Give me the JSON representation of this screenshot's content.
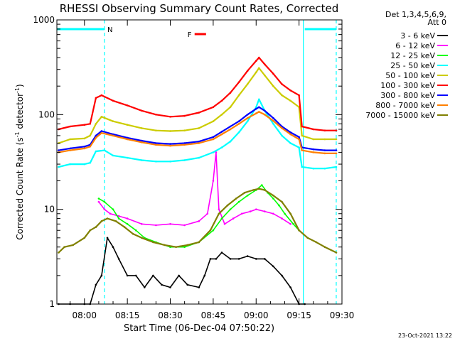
{
  "chart_data": {
    "type": "line",
    "title": "RHESSI Observing Summary Count Rates, Corrected",
    "ylabel_parts": [
      "Corrected Count Rate (s",
      "-1",
      " detector",
      "-1",
      ")"
    ],
    "xlabel": "Start Time (06-Dec-04 07:50:22)",
    "footer_date": "23-Oct-2021 13:22",
    "yscale": "log",
    "ylim": [
      1,
      1000
    ],
    "xlim": [
      "07:50:22",
      "09:30:00"
    ],
    "yticks": [
      {
        "value": 1,
        "label": "1"
      },
      {
        "value": 10,
        "label": "10"
      },
      {
        "value": 100,
        "label": "100"
      },
      {
        "value": 1000,
        "label": "1000"
      }
    ],
    "xticks": [
      {
        "value": "08:00",
        "label": "08:00"
      },
      {
        "value": "08:15",
        "label": "08:15"
      },
      {
        "value": "08:30",
        "label": "08:30"
      },
      {
        "value": "08:45",
        "label": "08:45"
      },
      {
        "value": "09:00",
        "label": "09:00"
      },
      {
        "value": "09:15",
        "label": "09:15"
      },
      {
        "value": "09:30",
        "label": "09:30"
      }
    ],
    "legend_header": [
      "Det 1,3,4,5,6,9,",
      "Att 0"
    ],
    "legend_position": "right",
    "annotations": [
      {
        "label": "N",
        "color": "#00ffff",
        "start": "07:50:22",
        "end": "08:07:00"
      },
      {
        "label": "",
        "color": "#00ffff",
        "start": "09:17:00",
        "end": "09:28:00"
      },
      {
        "label": "F",
        "color": "#ff0000",
        "start": "08:38:30",
        "end": "08:42:30"
      }
    ],
    "vlines": [
      {
        "time": "08:07:00",
        "color": "#00ffff",
        "style": "dashed"
      },
      {
        "time": "09:16:30",
        "color": "#00ffff",
        "style": "solid"
      },
      {
        "time": "09:28:00",
        "color": "#00ffff",
        "style": "dashed"
      }
    ],
    "series": [
      {
        "name": "3 - 6 keV",
        "color": "#000000",
        "points": [
          [
            "07:51",
            1
          ],
          [
            "07:55",
            1
          ],
          [
            "08:00",
            1
          ],
          [
            "08:02",
            1
          ],
          [
            "08:04",
            1.6
          ],
          [
            "08:06",
            2
          ],
          [
            "08:08",
            5
          ],
          [
            "08:10",
            4
          ],
          [
            "08:12",
            3
          ],
          [
            "08:15",
            2
          ],
          [
            "08:18",
            2
          ],
          [
            "08:21",
            1.5
          ],
          [
            "08:24",
            2
          ],
          [
            "08:27",
            1.6
          ],
          [
            "08:30",
            1.5
          ],
          [
            "08:33",
            2
          ],
          [
            "08:36",
            1.6
          ],
          [
            "08:40",
            1.5
          ],
          [
            "08:42",
            2
          ],
          [
            "08:44",
            3
          ],
          [
            "08:46",
            3
          ],
          [
            "08:48",
            3.5
          ],
          [
            "08:51",
            3
          ],
          [
            "08:54",
            3
          ],
          [
            "08:57",
            3.2
          ],
          [
            "09:00",
            3
          ],
          [
            "09:03",
            3
          ],
          [
            "09:06",
            2.5
          ],
          [
            "09:09",
            2
          ],
          [
            "09:12",
            1.5
          ],
          [
            "09:15",
            1
          ],
          [
            "09:17",
            1
          ]
        ]
      },
      {
        "name": "6 - 12 keV",
        "color": "#ff00ff",
        "points": [
          [
            "08:05",
            12
          ],
          [
            "08:07",
            10
          ],
          [
            "08:09",
            9
          ],
          [
            "08:12",
            8.5
          ],
          [
            "08:15",
            8
          ],
          [
            "08:20",
            7
          ],
          [
            "08:25",
            6.8
          ],
          [
            "08:30",
            7
          ],
          [
            "08:35",
            6.8
          ],
          [
            "08:40",
            7.5
          ],
          [
            "08:43",
            9
          ],
          [
            "08:45",
            20
          ],
          [
            "08:46",
            40
          ],
          [
            "08:47",
            10
          ],
          [
            "08:49",
            7
          ],
          [
            "08:52",
            8
          ],
          [
            "08:55",
            9
          ],
          [
            "08:58",
            9.5
          ],
          [
            "09:00",
            10
          ],
          [
            "09:03",
            9.5
          ],
          [
            "09:06",
            9
          ],
          [
            "09:09",
            8
          ],
          [
            "09:12",
            7
          ]
        ]
      },
      {
        "name": "12 - 25 keV",
        "color": "#00ff00",
        "points": [
          [
            "08:05",
            13
          ],
          [
            "08:07",
            12
          ],
          [
            "08:10",
            10
          ],
          [
            "08:12",
            8
          ],
          [
            "08:15",
            7
          ],
          [
            "08:18",
            6
          ],
          [
            "08:21",
            5
          ],
          [
            "08:25",
            4.5
          ],
          [
            "08:30",
            4
          ],
          [
            "08:35",
            4
          ],
          [
            "08:40",
            4.5
          ],
          [
            "08:45",
            6
          ],
          [
            "08:48",
            8
          ],
          [
            "08:51",
            10
          ],
          [
            "08:54",
            12
          ],
          [
            "08:57",
            14
          ],
          [
            "09:00",
            16
          ],
          [
            "09:02",
            18
          ],
          [
            "09:04",
            15
          ],
          [
            "09:06",
            13
          ],
          [
            "09:08",
            11
          ],
          [
            "09:10",
            9
          ],
          [
            "09:13",
            7
          ],
          [
            "09:15",
            6
          ]
        ]
      },
      {
        "name": "25 - 50 keV",
        "color": "#00ffff",
        "points": [
          [
            "07:51",
            28
          ],
          [
            "07:55",
            30
          ],
          [
            "08:00",
            30
          ],
          [
            "08:02",
            31
          ],
          [
            "08:04",
            41
          ],
          [
            "08:07",
            42
          ],
          [
            "08:10",
            37
          ],
          [
            "08:15",
            35
          ],
          [
            "08:20",
            33
          ],
          [
            "08:25",
            32
          ],
          [
            "08:30",
            32
          ],
          [
            "08:35",
            33
          ],
          [
            "08:40",
            35
          ],
          [
            "08:45",
            40
          ],
          [
            "08:48",
            45
          ],
          [
            "08:51",
            52
          ],
          [
            "08:54",
            65
          ],
          [
            "08:57",
            85
          ],
          [
            "09:00",
            120
          ],
          [
            "09:01",
            145
          ],
          [
            "09:03",
            110
          ],
          [
            "09:06",
            80
          ],
          [
            "09:09",
            60
          ],
          [
            "09:12",
            50
          ],
          [
            "09:15",
            45
          ],
          [
            "09:16",
            28
          ],
          [
            "09:20",
            27
          ],
          [
            "09:24",
            27
          ],
          [
            "09:28",
            28
          ]
        ]
      },
      {
        "name": "50 - 100 keV",
        "color": "#cccc00",
        "points": [
          [
            "07:51",
            50
          ],
          [
            "07:55",
            55
          ],
          [
            "08:00",
            56
          ],
          [
            "08:02",
            60
          ],
          [
            "08:04",
            80
          ],
          [
            "08:06",
            95
          ],
          [
            "08:10",
            85
          ],
          [
            "08:15",
            78
          ],
          [
            "08:20",
            72
          ],
          [
            "08:25",
            68
          ],
          [
            "08:30",
            67
          ],
          [
            "08:35",
            68
          ],
          [
            "08:40",
            72
          ],
          [
            "08:45",
            85
          ],
          [
            "08:48",
            100
          ],
          [
            "08:51",
            120
          ],
          [
            "08:54",
            160
          ],
          [
            "08:57",
            210
          ],
          [
            "09:00",
            280
          ],
          [
            "09:01",
            310
          ],
          [
            "09:03",
            260
          ],
          [
            "09:06",
            200
          ],
          [
            "09:09",
            160
          ],
          [
            "09:12",
            140
          ],
          [
            "09:15",
            120
          ],
          [
            "09:16",
            60
          ],
          [
            "09:20",
            55
          ],
          [
            "09:24",
            55
          ],
          [
            "09:28",
            55
          ]
        ]
      },
      {
        "name": "100 - 300 keV",
        "color": "#ff0000",
        "points": [
          [
            "07:51",
            70
          ],
          [
            "07:55",
            75
          ],
          [
            "08:00",
            78
          ],
          [
            "08:02",
            80
          ],
          [
            "08:04",
            150
          ],
          [
            "08:06",
            160
          ],
          [
            "08:10",
            140
          ],
          [
            "08:15",
            125
          ],
          [
            "08:20",
            110
          ],
          [
            "08:25",
            100
          ],
          [
            "08:30",
            95
          ],
          [
            "08:35",
            97
          ],
          [
            "08:40",
            105
          ],
          [
            "08:45",
            120
          ],
          [
            "08:48",
            140
          ],
          [
            "08:51",
            170
          ],
          [
            "08:54",
            220
          ],
          [
            "08:57",
            290
          ],
          [
            "09:00",
            370
          ],
          [
            "09:01",
            400
          ],
          [
            "09:03",
            340
          ],
          [
            "09:06",
            270
          ],
          [
            "09:09",
            210
          ],
          [
            "09:12",
            180
          ],
          [
            "09:15",
            160
          ],
          [
            "09:16",
            75
          ],
          [
            "09:20",
            70
          ],
          [
            "09:24",
            68
          ],
          [
            "09:28",
            68
          ]
        ]
      },
      {
        "name": "300 - 800 keV",
        "color": "#0000ff",
        "points": [
          [
            "07:51",
            42
          ],
          [
            "07:55",
            44
          ],
          [
            "08:00",
            46
          ],
          [
            "08:02",
            48
          ],
          [
            "08:04",
            60
          ],
          [
            "08:06",
            67
          ],
          [
            "08:10",
            62
          ],
          [
            "08:15",
            57
          ],
          [
            "08:20",
            53
          ],
          [
            "08:25",
            50
          ],
          [
            "08:30",
            49
          ],
          [
            "08:35",
            50
          ],
          [
            "08:40",
            52
          ],
          [
            "08:45",
            58
          ],
          [
            "08:48",
            66
          ],
          [
            "08:51",
            75
          ],
          [
            "08:54",
            85
          ],
          [
            "08:57",
            100
          ],
          [
            "09:00",
            115
          ],
          [
            "09:01",
            120
          ],
          [
            "09:03",
            110
          ],
          [
            "09:06",
            92
          ],
          [
            "09:09",
            75
          ],
          [
            "09:12",
            65
          ],
          [
            "09:15",
            58
          ],
          [
            "09:16",
            45
          ],
          [
            "09:20",
            43
          ],
          [
            "09:24",
            42
          ],
          [
            "09:28",
            42
          ]
        ]
      },
      {
        "name": "800 - 7000 keV",
        "color": "#ff8000",
        "points": [
          [
            "07:51",
            40
          ],
          [
            "07:55",
            42
          ],
          [
            "08:00",
            44
          ],
          [
            "08:02",
            46
          ],
          [
            "08:04",
            57
          ],
          [
            "08:06",
            64
          ],
          [
            "08:10",
            60
          ],
          [
            "08:15",
            55
          ],
          [
            "08:20",
            51
          ],
          [
            "08:25",
            48
          ],
          [
            "08:30",
            47
          ],
          [
            "08:35",
            48
          ],
          [
            "08:40",
            50
          ],
          [
            "08:45",
            55
          ],
          [
            "08:48",
            62
          ],
          [
            "08:51",
            70
          ],
          [
            "08:54",
            80
          ],
          [
            "08:57",
            92
          ],
          [
            "09:00",
            103
          ],
          [
            "09:01",
            107
          ],
          [
            "09:03",
            100
          ],
          [
            "09:06",
            86
          ],
          [
            "09:09",
            72
          ],
          [
            "09:12",
            62
          ],
          [
            "09:15",
            55
          ],
          [
            "09:16",
            42
          ],
          [
            "09:20",
            40
          ],
          [
            "09:24",
            39
          ],
          [
            "09:28",
            39
          ]
        ]
      },
      {
        "name": "7000 - 15000 keV",
        "color": "#808000",
        "points": [
          [
            "07:51",
            3.5
          ],
          [
            "07:53",
            4
          ],
          [
            "07:56",
            4.2
          ],
          [
            "08:00",
            5
          ],
          [
            "08:02",
            6
          ],
          [
            "08:04",
            6.5
          ],
          [
            "08:06",
            7.5
          ],
          [
            "08:08",
            8
          ],
          [
            "08:11",
            7.5
          ],
          [
            "08:14",
            6.5
          ],
          [
            "08:17",
            5.5
          ],
          [
            "08:20",
            5
          ],
          [
            "08:24",
            4.5
          ],
          [
            "08:28",
            4.2
          ],
          [
            "08:32",
            4
          ],
          [
            "08:36",
            4.2
          ],
          [
            "08:40",
            4.5
          ],
          [
            "08:44",
            6
          ],
          [
            "08:47",
            9
          ],
          [
            "08:50",
            11
          ],
          [
            "08:53",
            13
          ],
          [
            "08:56",
            15
          ],
          [
            "08:59",
            16
          ],
          [
            "09:01",
            16.5
          ],
          [
            "09:03",
            16
          ],
          [
            "09:06",
            14
          ],
          [
            "09:09",
            12
          ],
          [
            "09:12",
            9
          ],
          [
            "09:15",
            6
          ],
          [
            "09:18",
            5
          ],
          [
            "09:21",
            4.5
          ],
          [
            "09:24",
            4
          ],
          [
            "09:28",
            3.5
          ]
        ]
      }
    ]
  }
}
